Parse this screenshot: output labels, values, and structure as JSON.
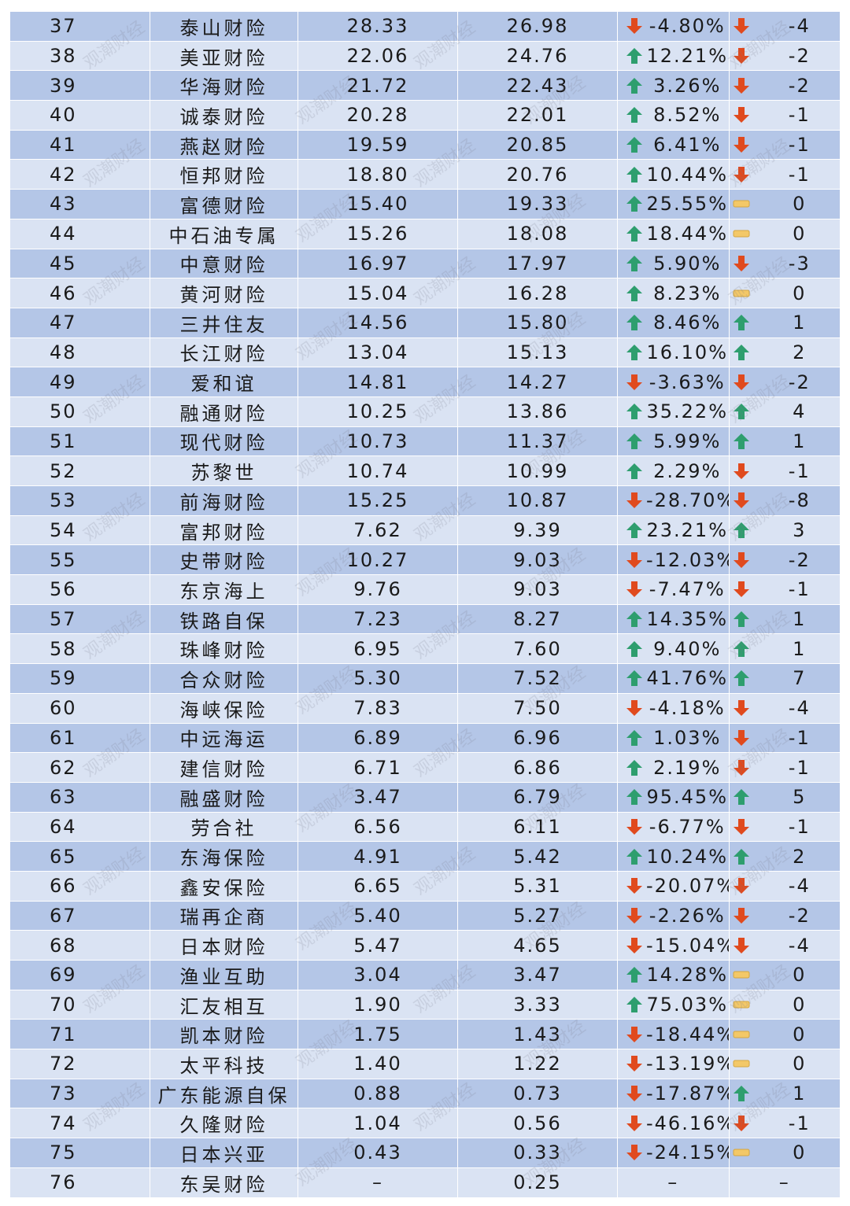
{
  "watermark": "观潮财经",
  "colors": {
    "up": "#2e9e6e",
    "down": "#e04a1e",
    "flat": "#f3c868",
    "band_dark": "#b4c6e7",
    "band_light": "#dae3f3"
  },
  "rows": [
    {
      "rank": "37",
      "name": "泰山财险",
      "prev": "28.33",
      "curr": "26.98",
      "change_icon": "down-arrow-icon",
      "change": "-4.80%",
      "move_icon": "down-arrow-icon",
      "move": "-4"
    },
    {
      "rank": "38",
      "name": "美亚财险",
      "prev": "22.06",
      "curr": "24.76",
      "change_icon": "up-arrow-icon",
      "change": "12.21%",
      "move_icon": "down-arrow-icon",
      "move": "-2"
    },
    {
      "rank": "39",
      "name": "华海财险",
      "prev": "21.72",
      "curr": "22.43",
      "change_icon": "up-arrow-icon",
      "change": "3.26%",
      "move_icon": "down-arrow-icon",
      "move": "-2"
    },
    {
      "rank": "40",
      "name": "诚泰财险",
      "prev": "20.28",
      "curr": "22.01",
      "change_icon": "up-arrow-icon",
      "change": "8.52%",
      "move_icon": "down-arrow-icon",
      "move": "-1"
    },
    {
      "rank": "41",
      "name": "燕赵财险",
      "prev": "19.59",
      "curr": "20.85",
      "change_icon": "up-arrow-icon",
      "change": "6.41%",
      "move_icon": "down-arrow-icon",
      "move": "-1"
    },
    {
      "rank": "42",
      "name": "恒邦财险",
      "prev": "18.80",
      "curr": "20.76",
      "change_icon": "up-arrow-icon",
      "change": "10.44%",
      "move_icon": "down-arrow-icon",
      "move": "-1"
    },
    {
      "rank": "43",
      "name": "富德财险",
      "prev": "15.40",
      "curr": "19.33",
      "change_icon": "up-arrow-icon",
      "change": "25.55%",
      "move_icon": "flat-dash-icon",
      "move": "0"
    },
    {
      "rank": "44",
      "name": "中石油专属",
      "prev": "15.26",
      "curr": "18.08",
      "change_icon": "up-arrow-icon",
      "change": "18.44%",
      "move_icon": "flat-dash-icon",
      "move": "0"
    },
    {
      "rank": "45",
      "name": "中意财险",
      "prev": "16.97",
      "curr": "17.97",
      "change_icon": "up-arrow-icon",
      "change": "5.90%",
      "move_icon": "down-arrow-icon",
      "move": "-3"
    },
    {
      "rank": "46",
      "name": "黄河财险",
      "prev": "15.04",
      "curr": "16.28",
      "change_icon": "up-arrow-icon",
      "change": "8.23%",
      "move_icon": "flat-dash-icon",
      "move": "0"
    },
    {
      "rank": "47",
      "name": "三井住友",
      "prev": "14.56",
      "curr": "15.80",
      "change_icon": "up-arrow-icon",
      "change": "8.46%",
      "move_icon": "up-arrow-icon",
      "move": "1"
    },
    {
      "rank": "48",
      "name": "长江财险",
      "prev": "13.04",
      "curr": "15.13",
      "change_icon": "up-arrow-icon",
      "change": "16.10%",
      "move_icon": "up-arrow-icon",
      "move": "2"
    },
    {
      "rank": "49",
      "name": "爱和谊",
      "prev": "14.81",
      "curr": "14.27",
      "change_icon": "down-arrow-icon",
      "change": "-3.63%",
      "move_icon": "down-arrow-icon",
      "move": "-2"
    },
    {
      "rank": "50",
      "name": "融通财险",
      "prev": "10.25",
      "curr": "13.86",
      "change_icon": "up-arrow-icon",
      "change": "35.22%",
      "move_icon": "up-arrow-icon",
      "move": "4"
    },
    {
      "rank": "51",
      "name": "现代财险",
      "prev": "10.73",
      "curr": "11.37",
      "change_icon": "up-arrow-icon",
      "change": "5.99%",
      "move_icon": "up-arrow-icon",
      "move": "1"
    },
    {
      "rank": "52",
      "name": "苏黎世",
      "prev": "10.74",
      "curr": "10.99",
      "change_icon": "up-arrow-icon",
      "change": "2.29%",
      "move_icon": "down-arrow-icon",
      "move": "-1"
    },
    {
      "rank": "53",
      "name": "前海财险",
      "prev": "15.25",
      "curr": "10.87",
      "change_icon": "down-arrow-icon",
      "change": "-28.70%",
      "move_icon": "down-arrow-icon",
      "move": "-8"
    },
    {
      "rank": "54",
      "name": "富邦财险",
      "prev": "7.62",
      "curr": "9.39",
      "change_icon": "up-arrow-icon",
      "change": "23.21%",
      "move_icon": "up-arrow-icon",
      "move": "3"
    },
    {
      "rank": "55",
      "name": "史带财险",
      "prev": "10.27",
      "curr": "9.03",
      "change_icon": "down-arrow-icon",
      "change": "-12.03%",
      "move_icon": "down-arrow-icon",
      "move": "-2"
    },
    {
      "rank": "56",
      "name": "东京海上",
      "prev": "9.76",
      "curr": "9.03",
      "change_icon": "down-arrow-icon",
      "change": "-7.47%",
      "move_icon": "down-arrow-icon",
      "move": "-1"
    },
    {
      "rank": "57",
      "name": "铁路自保",
      "prev": "7.23",
      "curr": "8.27",
      "change_icon": "up-arrow-icon",
      "change": "14.35%",
      "move_icon": "up-arrow-icon",
      "move": "1"
    },
    {
      "rank": "58",
      "name": "珠峰财险",
      "prev": "6.95",
      "curr": "7.60",
      "change_icon": "up-arrow-icon",
      "change": "9.40%",
      "move_icon": "up-arrow-icon",
      "move": "1"
    },
    {
      "rank": "59",
      "name": "合众财险",
      "prev": "5.30",
      "curr": "7.52",
      "change_icon": "up-arrow-icon",
      "change": "41.76%",
      "move_icon": "up-arrow-icon",
      "move": "7"
    },
    {
      "rank": "60",
      "name": "海峡保险",
      "prev": "7.83",
      "curr": "7.50",
      "change_icon": "down-arrow-icon",
      "change": "-4.18%",
      "move_icon": "down-arrow-icon",
      "move": "-4"
    },
    {
      "rank": "61",
      "name": "中远海运",
      "prev": "6.89",
      "curr": "6.96",
      "change_icon": "up-arrow-icon",
      "change": "1.03%",
      "move_icon": "down-arrow-icon",
      "move": "-1"
    },
    {
      "rank": "62",
      "name": "建信财险",
      "prev": "6.71",
      "curr": "6.86",
      "change_icon": "up-arrow-icon",
      "change": "2.19%",
      "move_icon": "down-arrow-icon",
      "move": "-1"
    },
    {
      "rank": "63",
      "name": "融盛财险",
      "prev": "3.47",
      "curr": "6.79",
      "change_icon": "up-arrow-icon",
      "change": "95.45%",
      "move_icon": "up-arrow-icon",
      "move": "5"
    },
    {
      "rank": "64",
      "name": "劳合社",
      "prev": "6.56",
      "curr": "6.11",
      "change_icon": "down-arrow-icon",
      "change": "-6.77%",
      "move_icon": "down-arrow-icon",
      "move": "-1"
    },
    {
      "rank": "65",
      "name": "东海保险",
      "prev": "4.91",
      "curr": "5.42",
      "change_icon": "up-arrow-icon",
      "change": "10.24%",
      "move_icon": "up-arrow-icon",
      "move": "2"
    },
    {
      "rank": "66",
      "name": "鑫安保险",
      "prev": "6.65",
      "curr": "5.31",
      "change_icon": "down-arrow-icon",
      "change": "-20.07%",
      "move_icon": "down-arrow-icon",
      "move": "-4"
    },
    {
      "rank": "67",
      "name": "瑞再企商",
      "prev": "5.40",
      "curr": "5.27",
      "change_icon": "down-arrow-icon",
      "change": "-2.26%",
      "move_icon": "down-arrow-icon",
      "move": "-2"
    },
    {
      "rank": "68",
      "name": "日本财险",
      "prev": "5.47",
      "curr": "4.65",
      "change_icon": "down-arrow-icon",
      "change": "-15.04%",
      "move_icon": "down-arrow-icon",
      "move": "-4"
    },
    {
      "rank": "69",
      "name": "渔业互助",
      "prev": "3.04",
      "curr": "3.47",
      "change_icon": "up-arrow-icon",
      "change": "14.28%",
      "move_icon": "flat-dash-icon",
      "move": "0"
    },
    {
      "rank": "70",
      "name": "汇友相互",
      "prev": "1.90",
      "curr": "3.33",
      "change_icon": "up-arrow-icon",
      "change": "75.03%",
      "move_icon": "flat-dash-icon",
      "move": "0"
    },
    {
      "rank": "71",
      "name": "凯本财险",
      "prev": "1.75",
      "curr": "1.43",
      "change_icon": "down-arrow-icon",
      "change": "-18.44%",
      "move_icon": "flat-dash-icon",
      "move": "0"
    },
    {
      "rank": "72",
      "name": "太平科技",
      "prev": "1.40",
      "curr": "1.22",
      "change_icon": "down-arrow-icon",
      "change": "-13.19%",
      "move_icon": "flat-dash-icon",
      "move": "0"
    },
    {
      "rank": "73",
      "name": "广东能源自保",
      "prev": "0.88",
      "curr": "0.73",
      "change_icon": "down-arrow-icon",
      "change": "-17.87%",
      "move_icon": "up-arrow-icon",
      "move": "1"
    },
    {
      "rank": "74",
      "name": "久隆财险",
      "prev": "1.04",
      "curr": "0.56",
      "change_icon": "down-arrow-icon",
      "change": "-46.16%",
      "move_icon": "down-arrow-icon",
      "move": "-1"
    },
    {
      "rank": "75",
      "name": "日本兴亚",
      "prev": "0.43",
      "curr": "0.33",
      "change_icon": "down-arrow-icon",
      "change": "-24.15%",
      "move_icon": "flat-dash-icon",
      "move": "0"
    },
    {
      "rank": "76",
      "name": "东吴财险",
      "prev": "–",
      "curr": "0.25",
      "change_icon": "",
      "change": "–",
      "move_icon": "",
      "move": "–"
    }
  ]
}
